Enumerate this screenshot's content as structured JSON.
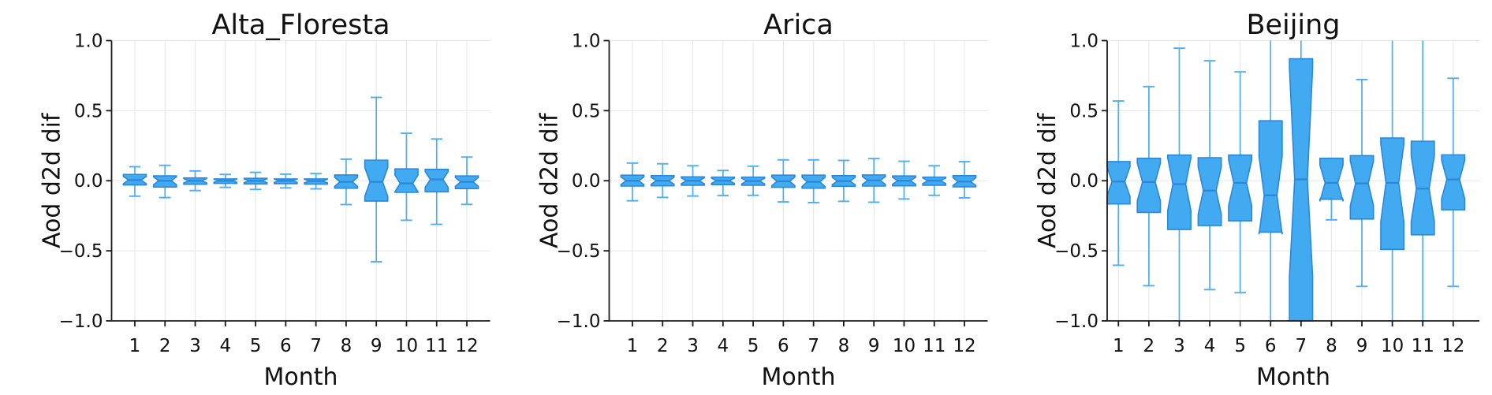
{
  "style": {
    "background": "#ffffff",
    "box_fill": "#41aaf0",
    "box_edge": "#2a87da",
    "median_color": "#2a87da",
    "whisker_color": "#4fadf1",
    "grid_color": "#e7e7e7",
    "spine_color": "#1a1a1a",
    "text_color": "#111111"
  },
  "chart_data": [
    {
      "type": "box",
      "notched": true,
      "title": "Alta_Floresta",
      "xlabel": "Month",
      "ylabel": "Aod d2d dif",
      "categories": [
        "1",
        "2",
        "3",
        "4",
        "5",
        "6",
        "7",
        "8",
        "9",
        "10",
        "11",
        "12"
      ],
      "ylim": [
        -1.0,
        1.0
      ],
      "xlim": [
        0.23,
        12.77
      ],
      "grid": true,
      "ytick_values": [
        1.0,
        0.5,
        0.0,
        -0.5,
        -1.0
      ],
      "ytick_labels": [
        "1.0",
        "0.5",
        "0.0",
        "−0.5",
        "−1.0"
      ],
      "boxes": [
        {
          "month": 1,
          "whislo": -0.11,
          "q1": -0.03,
          "med": 0.005,
          "q3": 0.045,
          "whishi": 0.1
        },
        {
          "month": 2,
          "whislo": -0.12,
          "q1": -0.045,
          "med": 0.0,
          "q3": 0.035,
          "whishi": 0.11
        },
        {
          "month": 3,
          "whislo": -0.07,
          "q1": -0.025,
          "med": 0.0,
          "q3": 0.02,
          "whishi": 0.07
        },
        {
          "month": 4,
          "whislo": -0.047,
          "q1": -0.019,
          "med": 0.0,
          "q3": 0.013,
          "whishi": 0.045
        },
        {
          "month": 5,
          "whislo": -0.062,
          "q1": -0.023,
          "med": 0.0,
          "q3": 0.017,
          "whishi": 0.06
        },
        {
          "month": 6,
          "whislo": -0.051,
          "q1": -0.021,
          "med": 0.0,
          "q3": 0.013,
          "whishi": 0.047
        },
        {
          "month": 7,
          "whislo": -0.058,
          "q1": -0.024,
          "med": -0.002,
          "q3": 0.013,
          "whishi": 0.051
        },
        {
          "month": 8,
          "whislo": -0.17,
          "q1": -0.053,
          "med": -0.008,
          "q3": 0.041,
          "whishi": 0.154
        },
        {
          "month": 9,
          "whislo": -0.578,
          "q1": -0.145,
          "med": -0.008,
          "q3": 0.147,
          "whishi": 0.595
        },
        {
          "month": 10,
          "whislo": -0.282,
          "q1": -0.083,
          "med": -0.019,
          "q3": 0.085,
          "whishi": 0.339
        },
        {
          "month": 11,
          "whislo": -0.311,
          "q1": -0.079,
          "med": 0.009,
          "q3": 0.081,
          "whishi": 0.298
        },
        {
          "month": 12,
          "whislo": -0.169,
          "q1": -0.056,
          "med": -0.008,
          "q3": 0.034,
          "whishi": 0.169
        }
      ]
    },
    {
      "type": "box",
      "notched": true,
      "title": "Arica",
      "xlabel": "Month",
      "ylabel": "Aod d2d dif",
      "categories": [
        "1",
        "2",
        "3",
        "4",
        "5",
        "6",
        "7",
        "8",
        "9",
        "10",
        "11",
        "12"
      ],
      "ylim": [
        -1.0,
        1.0
      ],
      "xlim": [
        0.23,
        12.77
      ],
      "grid": true,
      "ytick_values": [
        1.0,
        0.5,
        0.0,
        -0.5,
        -1.0
      ],
      "ytick_labels": [
        "1.0",
        "0.5",
        "0.0",
        "−0.5",
        "−1.0"
      ],
      "boxes": [
        {
          "month": 1,
          "whislo": -0.143,
          "q1": -0.038,
          "med": 0.0,
          "q3": 0.04,
          "whishi": 0.126
        },
        {
          "month": 2,
          "whislo": -0.119,
          "q1": -0.036,
          "med": 0.0,
          "q3": 0.036,
          "whishi": 0.121
        },
        {
          "month": 3,
          "whislo": -0.109,
          "q1": -0.032,
          "med": 0.0,
          "q3": 0.028,
          "whishi": 0.107
        },
        {
          "month": 4,
          "whislo": -0.105,
          "q1": -0.028,
          "med": 0.0,
          "q3": 0.026,
          "whishi": 0.073
        },
        {
          "month": 5,
          "whislo": -0.104,
          "q1": -0.032,
          "med": -0.002,
          "q3": 0.026,
          "whishi": 0.104
        },
        {
          "month": 6,
          "whislo": -0.151,
          "q1": -0.047,
          "med": -0.004,
          "q3": 0.04,
          "whishi": 0.149
        },
        {
          "month": 7,
          "whislo": -0.156,
          "q1": -0.053,
          "med": -0.008,
          "q3": 0.04,
          "whishi": 0.149
        },
        {
          "month": 8,
          "whislo": -0.147,
          "q1": -0.04,
          "med": -0.002,
          "q3": 0.036,
          "whishi": 0.145
        },
        {
          "month": 9,
          "whislo": -0.153,
          "q1": -0.038,
          "med": 0.002,
          "q3": 0.041,
          "whishi": 0.158
        },
        {
          "month": 10,
          "whislo": -0.13,
          "q1": -0.036,
          "med": 0.0,
          "q3": 0.034,
          "whishi": 0.139
        },
        {
          "month": 11,
          "whislo": -0.104,
          "q1": -0.032,
          "med": 0.0,
          "q3": 0.026,
          "whishi": 0.107
        },
        {
          "month": 12,
          "whislo": -0.122,
          "q1": -0.043,
          "med": -0.006,
          "q3": 0.036,
          "whishi": 0.136
        }
      ]
    },
    {
      "type": "box",
      "notched": true,
      "title": "Beijing",
      "xlabel": "Month",
      "ylabel": "Aod d2d dif",
      "categories": [
        "1",
        "2",
        "3",
        "4",
        "5",
        "6",
        "7",
        "8",
        "9",
        "10",
        "11",
        "12"
      ],
      "ylim": [
        -1.0,
        1.0
      ],
      "xlim": [
        0.63,
        12.86
      ],
      "grid": true,
      "ytick_values": [
        1.0,
        0.5,
        0.0,
        -0.5,
        -1.0
      ],
      "ytick_labels": [
        "1.0",
        "0.5",
        "0.0",
        "−0.5",
        "−1.0"
      ],
      "boxes": [
        {
          "month": 1,
          "whislo": -0.603,
          "q1": -0.166,
          "med": -0.006,
          "q3": 0.137,
          "whishi": 0.569
        },
        {
          "month": 2,
          "whislo": -0.749,
          "q1": -0.226,
          "med": -0.009,
          "q3": 0.16,
          "whishi": 0.672
        },
        {
          "month": 3,
          "whislo": -1.08,
          "q1": -0.348,
          "med": -0.024,
          "q3": 0.183,
          "whishi": 0.946
        },
        {
          "month": 4,
          "whislo": -0.777,
          "q1": -0.32,
          "med": -0.07,
          "q3": 0.164,
          "whishi": 0.856
        },
        {
          "month": 5,
          "whislo": -0.799,
          "q1": -0.286,
          "med": -0.015,
          "q3": 0.183,
          "whishi": 0.777
        },
        {
          "month": 6,
          "whislo": -1.08,
          "q1": -0.367,
          "med": -0.104,
          "q3": 0.428,
          "whishi": 1.08
        },
        {
          "month": 7,
          "whislo": -1.2,
          "q1": -1.15,
          "med": 0.01,
          "q3": 0.87,
          "whishi": 1.1,
          "notch_hi": 0.8,
          "notch_lo": -0.68
        },
        {
          "month": 8,
          "whislo": -0.279,
          "q1": -0.132,
          "med": -0.015,
          "q3": 0.16,
          "whishi": 0.16,
          "notch_hi": 0.113,
          "notch_lo": -0.147
        },
        {
          "month": 9,
          "whislo": -0.754,
          "q1": -0.273,
          "med": -0.019,
          "q3": 0.179,
          "whishi": 0.722
        },
        {
          "month": 10,
          "whislo": -1.08,
          "q1": -0.49,
          "med": -0.015,
          "q3": 0.305,
          "whishi": 1.08
        },
        {
          "month": 11,
          "whislo": -1.08,
          "q1": -0.386,
          "med": -0.056,
          "q3": 0.282,
          "whishi": 1.08
        },
        {
          "month": 12,
          "whislo": -0.754,
          "q1": -0.207,
          "med": 0.009,
          "q3": 0.185,
          "whishi": 0.731
        }
      ]
    }
  ]
}
